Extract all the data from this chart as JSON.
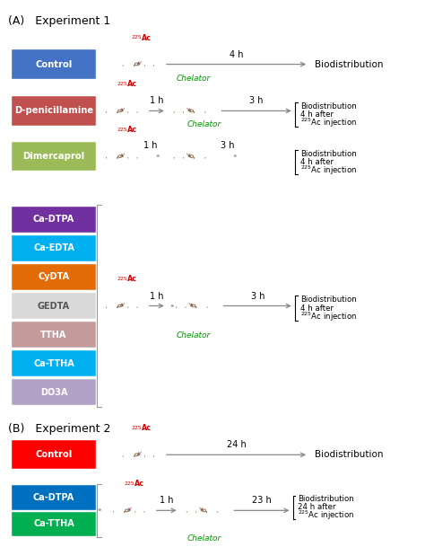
{
  "fig_width": 4.74,
  "fig_height": 6.09,
  "dpi": 100,
  "bg_color": "#ffffff",
  "section_A_title": "(A)   Experiment 1",
  "section_B_title": "(B)   Experiment 2",
  "exp1_boxes": [
    {
      "label": "Control",
      "color": "#4472C4",
      "tc": "#ffffff"
    },
    {
      "label": "D-penicillamine",
      "color": "#C0504D",
      "tc": "#ffffff"
    },
    {
      "label": "Dimercaprol",
      "color": "#9BBB59",
      "tc": "#ffffff"
    },
    {
      "label": "Ca-DTPA",
      "color": "#7030A0",
      "tc": "#ffffff"
    },
    {
      "label": "Ca-EDTA",
      "color": "#00B0F0",
      "tc": "#ffffff"
    },
    {
      "label": "CyDTA",
      "color": "#E36C09",
      "tc": "#ffffff"
    },
    {
      "label": "GEDTA",
      "color": "#D9D9D9",
      "tc": "#555555"
    },
    {
      "label": "TTHA",
      "color": "#C49A9A",
      "tc": "#ffffff"
    },
    {
      "label": "Ca-TTHA",
      "color": "#00B0F0",
      "tc": "#ffffff"
    },
    {
      "label": "DO3A",
      "color": "#B3A2C7",
      "tc": "#ffffff"
    }
  ],
  "exp2_boxes": [
    {
      "label": "Control",
      "color": "#FF0000",
      "tc": "#ffffff"
    },
    {
      "label": "Ca-DTPA",
      "color": "#0070C0",
      "tc": "#ffffff"
    },
    {
      "label": "Ca-TTHA",
      "color": "#00B050",
      "tc": "#ffffff"
    }
  ],
  "mouse_outline": "#8B7355",
  "ear_color": "#E8A0A0",
  "ear_edge": "#C06060",
  "arrow_color": "#888888",
  "green_text": "#009900",
  "red_text": "#CC0000"
}
